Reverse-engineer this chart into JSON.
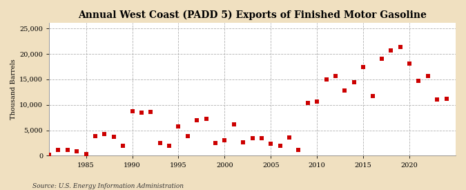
{
  "title": "Annual West Coast (PADD 5) Exports of Finished Motor Gasoline",
  "ylabel": "Thousand Barrels",
  "source": "Source: U.S. Energy Information Administration",
  "background_color": "#f0e0c0",
  "plot_background_color": "#ffffff",
  "marker_color": "#cc0000",
  "marker": "s",
  "marker_size": 16,
  "xlim": [
    1981,
    2025
  ],
  "ylim": [
    0,
    26000
  ],
  "yticks": [
    0,
    5000,
    10000,
    15000,
    20000,
    25000
  ],
  "xticks": [
    1985,
    1990,
    1995,
    2000,
    2005,
    2010,
    2015,
    2020
  ],
  "years": [
    1981,
    1982,
    1983,
    1984,
    1985,
    1986,
    1987,
    1988,
    1989,
    1990,
    1991,
    1992,
    1993,
    1994,
    1995,
    1996,
    1997,
    1998,
    1999,
    2000,
    2001,
    2002,
    2003,
    2004,
    2005,
    2006,
    2007,
    2008,
    2009,
    2010,
    2011,
    2012,
    2013,
    2014,
    2015,
    2016,
    2017,
    2018,
    2019,
    2020,
    2021,
    2022,
    2023,
    2024
  ],
  "values": [
    200,
    1200,
    1100,
    900,
    400,
    3900,
    4300,
    3700,
    1900,
    8700,
    8500,
    8600,
    2500,
    1900,
    5700,
    3900,
    7000,
    7200,
    2500,
    3000,
    6200,
    2600,
    3400,
    3500,
    2300,
    2000,
    3600,
    1100,
    10300,
    10600,
    14900,
    15600,
    12800,
    14400,
    17400,
    11700,
    19000,
    20600,
    21300,
    18100,
    14700,
    15600,
    11000,
    11200
  ],
  "title_fontsize": 10,
  "tick_fontsize": 7,
  "ylabel_fontsize": 7,
  "source_fontsize": 6.5
}
